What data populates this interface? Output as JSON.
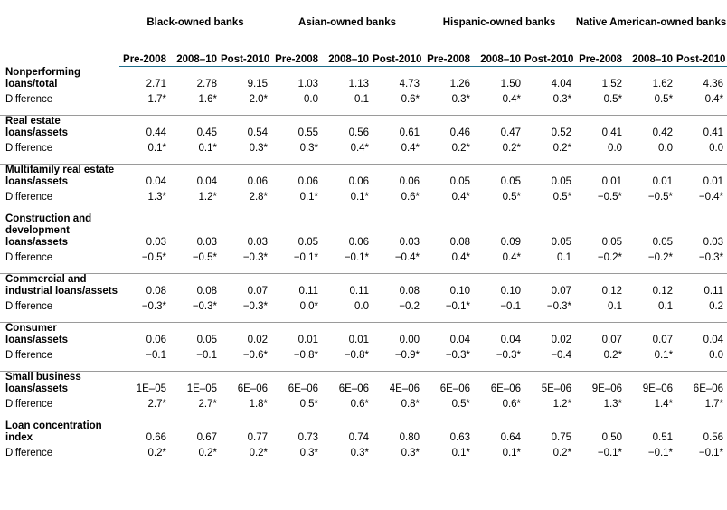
{
  "groups": [
    "Black-owned banks",
    "Asian-owned banks",
    "Hispanic-owned banks",
    "Native American-owned banks"
  ],
  "periods": [
    "Pre-2008",
    "2008–10",
    "Post-2010"
  ],
  "difference_label": "Difference",
  "rows": [
    {
      "label": "Nonperforming loans/total",
      "values": [
        "2.71",
        "2.78",
        "9.15",
        "1.03",
        "1.13",
        "4.73",
        "1.26",
        "1.50",
        "4.04",
        "1.52",
        "1.62",
        "4.36"
      ],
      "diffs": [
        "1.7*",
        "1.6*",
        "2.0*",
        "0.0",
        "0.1",
        "0.6*",
        "0.3*",
        "0.4*",
        "0.3*",
        "0.5*",
        "0.5*",
        "0.4*"
      ]
    },
    {
      "label": "Real estate loans/assets",
      "values": [
        "0.44",
        "0.45",
        "0.54",
        "0.55",
        "0.56",
        "0.61",
        "0.46",
        "0.47",
        "0.52",
        "0.41",
        "0.42",
        "0.41"
      ],
      "diffs": [
        "0.1*",
        "0.1*",
        "0.3*",
        "0.3*",
        "0.4*",
        "0.4*",
        "0.2*",
        "0.2*",
        "0.2*",
        "0.0",
        "0.0",
        "0.0"
      ]
    },
    {
      "label": "Multifamily real estate loans/assets",
      "values": [
        "0.04",
        "0.04",
        "0.06",
        "0.06",
        "0.06",
        "0.06",
        "0.05",
        "0.05",
        "0.05",
        "0.01",
        "0.01",
        "0.01"
      ],
      "diffs": [
        "1.3*",
        "1.2*",
        "2.8*",
        "0.1*",
        "0.1*",
        "0.6*",
        "0.4*",
        "0.5*",
        "0.5*",
        "−0.5*",
        "−0.5*",
        "−0.4*"
      ]
    },
    {
      "label": "Construction and development loans/assets",
      "values": [
        "0.03",
        "0.03",
        "0.03",
        "0.05",
        "0.06",
        "0.03",
        "0.08",
        "0.09",
        "0.05",
        "0.05",
        "0.05",
        "0.03"
      ],
      "diffs": [
        "−0.5*",
        "−0.5*",
        "−0.3*",
        "−0.1*",
        "−0.1*",
        "−0.4*",
        "0.4*",
        "0.4*",
        "0.1",
        "−0.2*",
        "−0.2*",
        "−0.3*"
      ]
    },
    {
      "label": "Commercial and industrial loans/assets",
      "values": [
        "0.08",
        "0.08",
        "0.07",
        "0.11",
        "0.11",
        "0.08",
        "0.10",
        "0.10",
        "0.07",
        "0.12",
        "0.12",
        "0.11"
      ],
      "diffs": [
        "−0.3*",
        "−0.3*",
        "−0.3*",
        "0.0*",
        "0.0",
        "−0.2",
        "−0.1*",
        "−0.1",
        "−0.3*",
        "0.1",
        "0.1",
        "0.2"
      ]
    },
    {
      "label": "Consumer loans/assets",
      "values": [
        "0.06",
        "0.05",
        "0.02",
        "0.01",
        "0.01",
        "0.00",
        "0.04",
        "0.04",
        "0.02",
        "0.07",
        "0.07",
        "0.04"
      ],
      "diffs": [
        "−0.1",
        "−0.1",
        "−0.6*",
        "−0.8*",
        "−0.8*",
        "−0.9*",
        "−0.3*",
        "−0.3*",
        "−0.4",
        "0.2*",
        "0.1*",
        "0.0"
      ]
    },
    {
      "label": "Small business loans/assets",
      "values": [
        "1E–05",
        "1E–05",
        "6E–06",
        "6E–06",
        "6E–06",
        "4E–06",
        "6E–06",
        "6E–06",
        "5E–06",
        "9E–06",
        "9E–06",
        "6E–06"
      ],
      "diffs": [
        "2.7*",
        "2.7*",
        "1.8*",
        "0.5*",
        "0.6*",
        "0.8*",
        "0.5*",
        "0.6*",
        "1.2*",
        "1.3*",
        "1.4*",
        "1.7*"
      ]
    },
    {
      "label": "Loan concentration index",
      "values": [
        "0.66",
        "0.67",
        "0.77",
        "0.73",
        "0.74",
        "0.80",
        "0.63",
        "0.64",
        "0.75",
        "0.50",
        "0.51",
        "0.56"
      ],
      "diffs": [
        "0.2*",
        "0.2*",
        "0.2*",
        "0.3*",
        "0.3*",
        "0.3*",
        "0.1*",
        "0.1*",
        "0.2*",
        "−0.1*",
        "−0.1*",
        "−0.1*"
      ]
    }
  ]
}
